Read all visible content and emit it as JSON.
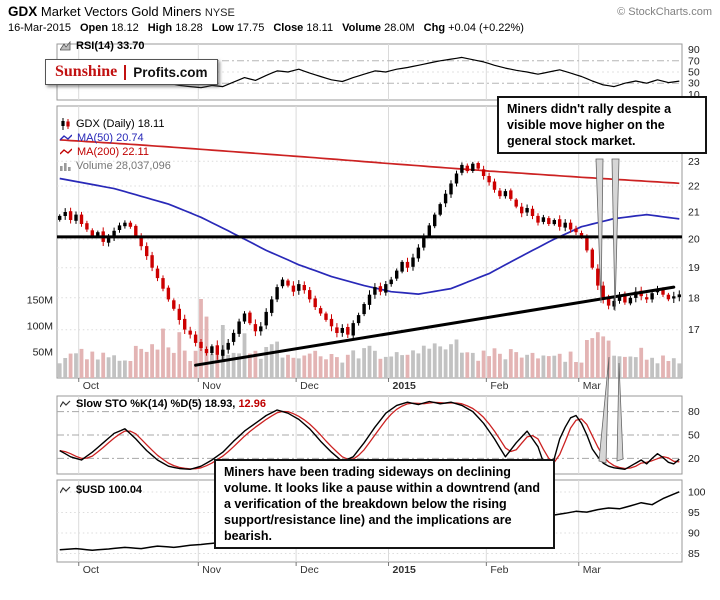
{
  "header": {
    "symbol": "GDX",
    "name": "Market Vectors Gold Miners",
    "exchange": "NYSE",
    "copyright": "© StockCharts.com",
    "date": "16-Mar-2015",
    "quote": [
      {
        "label": "Open",
        "value": "18.12"
      },
      {
        "label": "High",
        "value": "18.28"
      },
      {
        "label": "Low",
        "value": "17.75"
      },
      {
        "label": "Close",
        "value": "18.11"
      },
      {
        "label": "Volume",
        "value": "28.0M"
      },
      {
        "label": "Chg",
        "value": "+0.04 (+0.22%)"
      }
    ]
  },
  "logo": {
    "part1": "Sunshine",
    "part2": "Profits.com"
  },
  "rsi_panel": {
    "label": "RSI(14)",
    "value": "33.70",
    "ticks": [
      90,
      70,
      50,
      30,
      10
    ]
  },
  "main_panel": {
    "legend": [
      {
        "label": "GDX (Daily)",
        "value": "18.11",
        "color": "#000000"
      },
      {
        "label": "MA(50)",
        "value": "20.74",
        "color": "#2929b8"
      },
      {
        "label": "MA(200)",
        "value": "22.11",
        "color": "#c00000"
      },
      {
        "label": "Volume",
        "value": "28,037,096",
        "color": "#767676"
      }
    ],
    "price_ticks": [
      23,
      22,
      21,
      20,
      19,
      18,
      17
    ],
    "volume_ticks": [
      "150M",
      "100M",
      "50M"
    ],
    "annotation": "Miners didn't rally despite a visible move higher on the general stock market."
  },
  "sto_panel": {
    "label": "Slow STO %K(14) %D(5)",
    "k_value": "18.93,",
    "d_value": "12.96",
    "ticks": [
      80,
      50,
      20
    ],
    "annotation": "Miners have been trading sideways on declining volume. It looks like a pause within a downtrend (and a verification of the breakdown below the rising support/resistance line) and the implications are bearish."
  },
  "usd_panel": {
    "label": "$USD",
    "value": "100.04",
    "ticks": [
      100,
      95,
      90,
      85
    ]
  },
  "chart_data": {
    "x": {
      "trading_days": 115,
      "month_starts": [
        [
          "Oct",
          4
        ],
        [
          "Nov",
          26
        ],
        [
          "Dec",
          44
        ],
        [
          "2015",
          61
        ],
        [
          "Feb",
          79
        ],
        [
          "Mar",
          96
        ]
      ]
    },
    "panels": [
      {
        "id": "rsi",
        "type": "line",
        "title": "RSI(14)",
        "last": 33.7,
        "ylim": [
          0,
          100
        ],
        "bands": [
          70,
          50,
          30
        ],
        "points": [
          [
            0,
            58
          ],
          [
            2,
            52
          ],
          [
            4,
            56
          ],
          [
            6,
            48
          ],
          [
            8,
            45
          ],
          [
            10,
            52
          ],
          [
            12,
            55
          ],
          [
            14,
            47
          ],
          [
            16,
            40
          ],
          [
            18,
            34
          ],
          [
            20,
            30
          ],
          [
            22,
            26
          ],
          [
            24,
            24
          ],
          [
            26,
            22
          ],
          [
            28,
            26
          ],
          [
            30,
            24
          ],
          [
            32,
            32
          ],
          [
            34,
            40
          ],
          [
            36,
            35
          ],
          [
            38,
            44
          ],
          [
            40,
            52
          ],
          [
            42,
            50
          ],
          [
            44,
            55
          ],
          [
            46,
            48
          ],
          [
            48,
            42
          ],
          [
            50,
            36
          ],
          [
            52,
            33
          ],
          [
            54,
            40
          ],
          [
            56,
            46
          ],
          [
            58,
            52
          ],
          [
            60,
            50
          ],
          [
            62,
            55
          ],
          [
            64,
            58
          ],
          [
            66,
            62
          ],
          [
            68,
            66
          ],
          [
            70,
            70
          ],
          [
            72,
            73
          ],
          [
            74,
            76
          ],
          [
            76,
            72
          ],
          [
            78,
            68
          ],
          [
            80,
            62
          ],
          [
            82,
            57
          ],
          [
            84,
            53
          ],
          [
            86,
            50
          ],
          [
            88,
            46
          ],
          [
            90,
            50
          ],
          [
            92,
            54
          ],
          [
            94,
            48
          ],
          [
            96,
            42
          ],
          [
            98,
            34
          ],
          [
            100,
            27
          ],
          [
            102,
            24
          ],
          [
            104,
            30
          ],
          [
            106,
            34
          ],
          [
            108,
            30
          ],
          [
            110,
            36
          ],
          [
            112,
            31
          ],
          [
            114,
            33.7
          ]
        ]
      },
      {
        "id": "price",
        "type": "candlestick",
        "title": "GDX (Daily)",
        "last": 18.11,
        "scale": "log",
        "ylim": [
          15.6,
          25.4
        ],
        "open_first": 20.7,
        "close": [
          20.85,
          21.0,
          20.7,
          20.9,
          20.55,
          20.35,
          20.1,
          20.25,
          19.9,
          20.05,
          20.3,
          20.5,
          20.6,
          20.45,
          20.1,
          19.75,
          19.4,
          19.0,
          18.65,
          18.3,
          17.95,
          17.65,
          17.3,
          17.0,
          16.85,
          16.6,
          16.45,
          16.3,
          16.5,
          16.25,
          16.4,
          16.6,
          16.9,
          17.25,
          17.5,
          17.2,
          16.95,
          17.1,
          17.55,
          17.95,
          18.35,
          18.6,
          18.4,
          18.2,
          18.45,
          18.25,
          17.95,
          17.7,
          17.5,
          17.3,
          17.1,
          16.9,
          17.05,
          16.85,
          17.2,
          17.45,
          17.8,
          18.1,
          18.35,
          18.2,
          18.45,
          18.6,
          18.9,
          19.2,
          19.0,
          19.35,
          19.7,
          20.1,
          20.5,
          20.9,
          21.3,
          21.7,
          22.1,
          22.5,
          22.85,
          22.6,
          22.9,
          22.7,
          22.4,
          22.15,
          21.85,
          21.6,
          21.8,
          21.5,
          21.2,
          20.95,
          21.15,
          20.85,
          20.6,
          20.8,
          20.55,
          20.7,
          20.45,
          20.6,
          20.35,
          20.25,
          20.1,
          19.6,
          19.0,
          18.4,
          17.95,
          17.75,
          17.9,
          18.1,
          17.85,
          18.0,
          18.2,
          18.05,
          17.95,
          18.15,
          18.3,
          18.1,
          17.95,
          18.05,
          18.11
        ],
        "ma50": {
          "last": 20.74,
          "points": [
            [
              0,
              22.3
            ],
            [
              10,
              21.9
            ],
            [
              20,
              21.3
            ],
            [
              26,
              20.8
            ],
            [
              32,
              20.2
            ],
            [
              38,
              19.6
            ],
            [
              44,
              19.1
            ],
            [
              50,
              18.7
            ],
            [
              56,
              18.4
            ],
            [
              61,
              18.2
            ],
            [
              66,
              18.12
            ],
            [
              72,
              18.3
            ],
            [
              79,
              18.8
            ],
            [
              85,
              19.4
            ],
            [
              91,
              20.0
            ],
            [
              96,
              20.45
            ],
            [
              102,
              20.75
            ],
            [
              108,
              20.9
            ],
            [
              114,
              20.74
            ]
          ]
        },
        "ma200": {
          "last": 22.11,
          "points": [
            [
              0,
              23.9
            ],
            [
              14,
              23.7
            ],
            [
              26,
              23.5
            ],
            [
              44,
              23.2
            ],
            [
              61,
              22.9
            ],
            [
              79,
              22.6
            ],
            [
              96,
              22.35
            ],
            [
              114,
              22.11
            ]
          ]
        },
        "gridlines": [
          23,
          22,
          21,
          20,
          19,
          18,
          17
        ],
        "trendlines": [
          {
            "name": "horizontal-resistance",
            "price": 20.08
          },
          {
            "name": "rising-support",
            "from_day": 25,
            "from_price": 15.95,
            "to_day": 113,
            "to_price": 18.35
          }
        ]
      },
      {
        "id": "volume",
        "type": "bar",
        "title": "Volume",
        "last": 28037096,
        "unit": "millions",
        "overlay_of": "price",
        "scale_ticks": [
          150,
          100,
          50
        ],
        "spikes": {
          "19": 95,
          "22": 88,
          "26": 152,
          "27": 118,
          "30": 102,
          "34": 86,
          "40": 70,
          "57": 62,
          "73": 74,
          "99": 88,
          "100": 80,
          "101": 72,
          "107": 58,
          "114": 28
        }
      },
      {
        "id": "sto",
        "type": "line",
        "title": "Slow STO %K(14) %D(5)",
        "k_last": 18.93,
        "d_last": 12.96,
        "ylim": [
          0,
          100
        ],
        "bands": [
          80,
          50,
          20
        ],
        "k_points": [
          [
            0,
            30
          ],
          [
            2,
            22
          ],
          [
            4,
            18
          ],
          [
            6,
            28
          ],
          [
            8,
            40
          ],
          [
            10,
            52
          ],
          [
            12,
            58
          ],
          [
            14,
            45
          ],
          [
            16,
            30
          ],
          [
            18,
            18
          ],
          [
            20,
            10
          ],
          [
            22,
            7
          ],
          [
            24,
            6
          ],
          [
            26,
            10
          ],
          [
            28,
            18
          ],
          [
            30,
            28
          ],
          [
            32,
            42
          ],
          [
            34,
            55
          ],
          [
            36,
            65
          ],
          [
            38,
            75
          ],
          [
            40,
            82
          ],
          [
            42,
            78
          ],
          [
            44,
            70
          ],
          [
            46,
            58
          ],
          [
            48,
            42
          ],
          [
            50,
            28
          ],
          [
            52,
            16
          ],
          [
            54,
            22
          ],
          [
            56,
            40
          ],
          [
            58,
            60
          ],
          [
            60,
            78
          ],
          [
            62,
            88
          ],
          [
            64,
            92
          ],
          [
            66,
            89
          ],
          [
            68,
            93
          ],
          [
            70,
            90
          ],
          [
            72,
            92
          ],
          [
            74,
            88
          ],
          [
            76,
            80
          ],
          [
            78,
            65
          ],
          [
            80,
            45
          ],
          [
            82,
            22
          ],
          [
            84,
            40
          ],
          [
            86,
            55
          ],
          [
            88,
            35
          ],
          [
            89,
            15
          ],
          [
            90,
            10
          ],
          [
            91,
            20
          ],
          [
            92,
            45
          ],
          [
            93,
            60
          ],
          [
            94,
            72
          ],
          [
            95,
            75
          ],
          [
            96,
            65
          ],
          [
            97,
            50
          ],
          [
            98,
            32
          ],
          [
            99,
            22
          ],
          [
            100,
            14
          ],
          [
            101,
            10
          ],
          [
            102,
            8
          ],
          [
            103,
            7
          ],
          [
            104,
            6
          ],
          [
            105,
            10
          ],
          [
            106,
            14
          ],
          [
            107,
            18
          ],
          [
            108,
            13
          ],
          [
            109,
            20
          ],
          [
            110,
            26
          ],
          [
            111,
            21
          ],
          [
            112,
            15
          ],
          [
            113,
            13
          ],
          [
            114,
            18.93
          ]
        ]
      },
      {
        "id": "usd",
        "type": "line",
        "title": "$USD",
        "last": 100.04,
        "ylim": [
          83,
          103
        ],
        "gridlines": [
          100,
          95,
          90,
          85
        ],
        "points": [
          [
            0,
            85.9
          ],
          [
            3,
            86.2
          ],
          [
            6,
            85.8
          ],
          [
            9,
            86.1
          ],
          [
            12,
            86.5
          ],
          [
            15,
            86.2
          ],
          [
            18,
            86.8
          ],
          [
            21,
            86.5
          ],
          [
            24,
            87.0
          ],
          [
            26,
            87.2
          ],
          [
            29,
            87.6
          ],
          [
            32,
            87.9
          ],
          [
            35,
            87.6
          ],
          [
            38,
            88.1
          ],
          [
            41,
            88.4
          ],
          [
            44,
            88.2
          ],
          [
            47,
            88.6
          ],
          [
            50,
            89.0
          ],
          [
            53,
            89.3
          ],
          [
            56,
            89.7
          ],
          [
            59,
            90.1
          ],
          [
            61,
            90.5
          ],
          [
            64,
            91.2
          ],
          [
            67,
            92.0
          ],
          [
            70,
            92.7
          ],
          [
            73,
            93.6
          ],
          [
            75,
            94.4
          ],
          [
            77,
            94.9
          ],
          [
            79,
            94.7
          ],
          [
            81,
            94.1
          ],
          [
            83,
            93.9
          ],
          [
            85,
            94.4
          ],
          [
            87,
            94.9
          ],
          [
            89,
            95.3
          ],
          [
            91,
            94.4
          ],
          [
            93,
            94.8
          ],
          [
            95,
            95.3
          ],
          [
            97,
            95.1
          ],
          [
            99,
            95.7
          ],
          [
            101,
            96.1
          ],
          [
            103,
            95.9
          ],
          [
            105,
            96.6
          ],
          [
            107,
            97.4
          ],
          [
            109,
            96.9
          ],
          [
            111,
            98.4
          ],
          [
            113,
            99.5
          ],
          [
            114,
            100.04
          ]
        ]
      }
    ]
  }
}
